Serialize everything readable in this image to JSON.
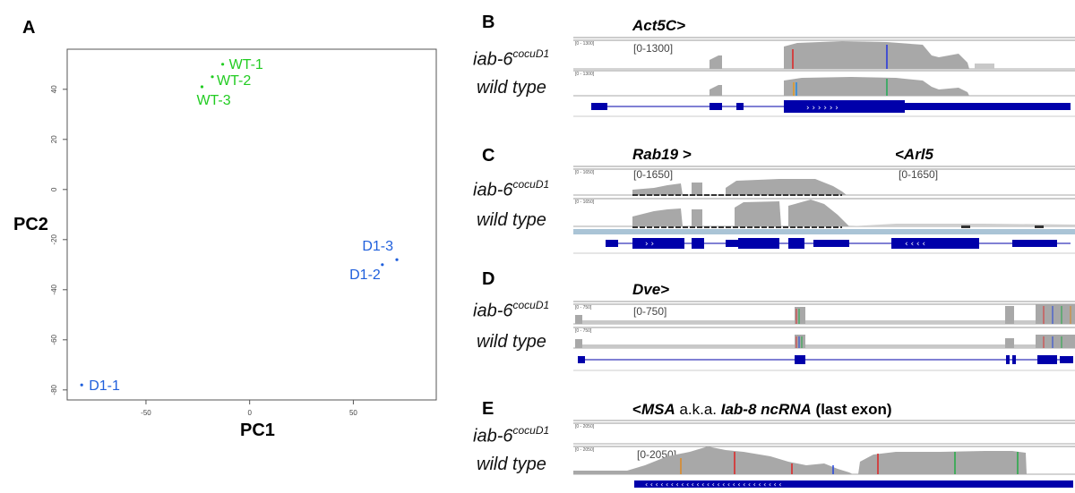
{
  "panels": {
    "a": "A",
    "b": "B",
    "c": "C",
    "d": "D",
    "e": "E"
  },
  "pca": {
    "xlabel": "PC1",
    "ylabel": "PC2",
    "xticks": [
      "-50",
      "0",
      "50"
    ],
    "yticks": [
      "40",
      "20",
      "0",
      "-20",
      "-40",
      "-60",
      "-80"
    ],
    "colors": {
      "wt": "#22cc22",
      "d1": "#1f5fdc"
    }
  },
  "chart_data": {
    "type": "scatter",
    "title": "",
    "xlabel": "PC1",
    "ylabel": "PC2",
    "xlim": [
      -88,
      90
    ],
    "ylim": [
      -84,
      56
    ],
    "series": [
      {
        "name": "wild type",
        "color": "#22cc22",
        "points": [
          {
            "label": "WT-1",
            "x": -13,
            "y": 50
          },
          {
            "label": "WT-2",
            "x": -18,
            "y": 45
          },
          {
            "label": "WT-3",
            "x": -23,
            "y": 41
          }
        ]
      },
      {
        "name": "iab-6 cocuD1",
        "color": "#1f5fdc",
        "points": [
          {
            "label": "D1-3",
            "x": 71,
            "y": -28
          },
          {
            "label": "D1-2",
            "x": 64,
            "y": -30
          },
          {
            "label": "D1-1",
            "x": -81,
            "y": -78
          }
        ]
      }
    ]
  },
  "tracks": {
    "mutant": {
      "base": "iab-6",
      "sup": "cocuD1"
    },
    "wild": "wild type",
    "mini_ranges": {
      "b": "[0 - 1300]",
      "c": "[0 - 1650]",
      "d": "[0 - 750]",
      "e": "[0 - 2050]"
    }
  },
  "panel_b": {
    "gene": "Act5C>",
    "range": "[0-1300]"
  },
  "panel_c": {
    "gene1": "Rab19 >",
    "gene2": "<Arl5",
    "range1": "[0-1650]",
    "range2": "[0-1650]"
  },
  "panel_d": {
    "gene": "Dve>",
    "range": "[0-750]"
  },
  "panel_e": {
    "gene_prefix": "<",
    "gene_a": "MSA",
    "gene_mid": " a.k.a. ",
    "gene_b": "Iab-8 ncRNA",
    "gene_suffix": " (last exon)",
    "range": "[0-2050]"
  }
}
